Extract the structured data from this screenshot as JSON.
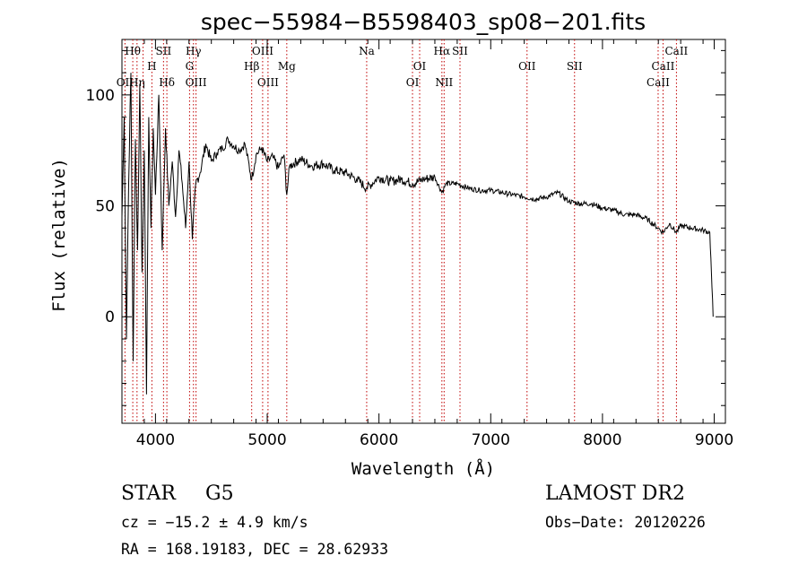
{
  "chart_data": {
    "type": "line",
    "title": "spec−55984−B5598403_sp08−201.fits",
    "xlabel": "Wavelength (Å)",
    "ylabel": "Flux (relative)",
    "xlim": [
      3700,
      9100
    ],
    "ylim": [
      -48,
      125
    ],
    "xticks": [
      4000,
      5000,
      6000,
      7000,
      8000,
      9000
    ],
    "yticks": [
      0,
      50,
      100
    ],
    "xtick_labels": [
      "4000",
      "5000",
      "6000",
      "7000",
      "8000",
      "9000"
    ],
    "ytick_labels": [
      "0",
      "50",
      "100"
    ],
    "grid": false,
    "series": [
      {
        "x": [
          3700,
          3720,
          3740,
          3760,
          3780,
          3800,
          3820,
          3840,
          3860,
          3880,
          3900,
          3920,
          3940,
          3960,
          3980,
          4000,
          4030,
          4060,
          4090,
          4120,
          4150,
          4180,
          4210,
          4240,
          4270,
          4300,
          4330,
          4360,
          4400,
          4450,
          4500,
          4550,
          4600,
          4650,
          4700,
          4750,
          4800,
          4861,
          4900,
          4950,
          5000,
          5050,
          5100,
          5150,
          5175,
          5200,
          5300,
          5400,
          5500,
          5600,
          5700,
          5800,
          5890,
          6000,
          6100,
          6200,
          6300,
          6400,
          6500,
          6563,
          6600,
          6700,
          6800,
          6900,
          7000,
          7100,
          7200,
          7300,
          7400,
          7500,
          7600,
          7700,
          7800,
          7900,
          8000,
          8100,
          8200,
          8300,
          8400,
          8498,
          8542,
          8600,
          8662,
          8700,
          8800,
          8900,
          8960,
          8975,
          8990
        ],
        "y": [
          45,
          90,
          -10,
          60,
          110,
          -20,
          80,
          30,
          105,
          20,
          75,
          -35,
          90,
          40,
          85,
          55,
          100,
          30,
          85,
          50,
          70,
          45,
          75,
          60,
          40,
          70,
          35,
          60,
          65,
          78,
          70,
          74,
          76,
          80,
          77,
          75,
          78,
          62,
          73,
          76,
          70,
          72,
          67,
          73,
          55,
          68,
          71,
          68,
          69,
          66,
          65,
          62,
          58,
          63,
          61,
          62,
          60,
          62,
          63,
          56,
          60,
          60,
          58,
          57,
          57,
          56,
          55,
          54,
          53,
          54,
          56,
          52,
          51,
          51,
          49,
          48,
          46,
          46,
          44,
          40,
          38,
          42,
          38,
          41,
          40,
          39,
          38,
          20,
          0
        ]
      }
    ],
    "line_labels": [
      {
        "label": "Hθ",
        "x": 3797,
        "row": 1
      },
      {
        "label": "OII",
        "x": 3727,
        "row": 3
      },
      {
        "label": "Hη",
        "x": 3835,
        "row": 3
      },
      {
        "label": "SII",
        "x": 4072,
        "row": 1
      },
      {
        "label": "H",
        "x": 3968,
        "row": 2
      },
      {
        "label": "Hδ",
        "x": 4102,
        "row": 3
      },
      {
        "label": "Hγ",
        "x": 4340,
        "row": 1
      },
      {
        "label": "G",
        "x": 4305,
        "row": 2
      },
      {
        "label": "OIII",
        "x": 4363,
        "row": 3
      },
      {
        "label": "OIII",
        "x": 4959,
        "row": 1
      },
      {
        "label": "Hβ",
        "x": 4861,
        "row": 2
      },
      {
        "label": "OIII",
        "x": 5007,
        "row": 3
      },
      {
        "label": "Mg",
        "x": 5175,
        "row": 2
      },
      {
        "label": "Na",
        "x": 5890,
        "row": 1
      },
      {
        "label": "OI",
        "x": 6364,
        "row": 2
      },
      {
        "label": "OI",
        "x": 6300,
        "row": 3
      },
      {
        "label": "Hα",
        "x": 6563,
        "row": 1
      },
      {
        "label": "SII",
        "x": 6725,
        "row": 1
      },
      {
        "label": "NII",
        "x": 6583,
        "row": 3
      },
      {
        "label": "OII",
        "x": 7325,
        "row": 2
      },
      {
        "label": "SII",
        "x": 7750,
        "row": 2
      },
      {
        "label": "CaII",
        "x": 8662,
        "row": 1
      },
      {
        "label": "CaII",
        "x": 8542,
        "row": 2
      },
      {
        "label": "CaII",
        "x": 8498,
        "row": 3
      }
    ],
    "line_markers": [
      3727,
      3797,
      3835,
      3889,
      3968,
      4072,
      4102,
      4305,
      4340,
      4363,
      4861,
      4959,
      5007,
      5175,
      5890,
      6300,
      6364,
      6563,
      6583,
      6725,
      7325,
      7750,
      8498,
      8542,
      8662
    ],
    "line_color": "#000000",
    "marker_color": "#c00000"
  },
  "info": {
    "class": "STAR",
    "subclass": "G5",
    "survey": "LAMOST DR2",
    "cz": "cz = −15.2 ± 4.9 km/s",
    "obs_date": "Obs−Date: 20120226",
    "coords": "RA = 168.19183, DEC =  28.62933"
  }
}
